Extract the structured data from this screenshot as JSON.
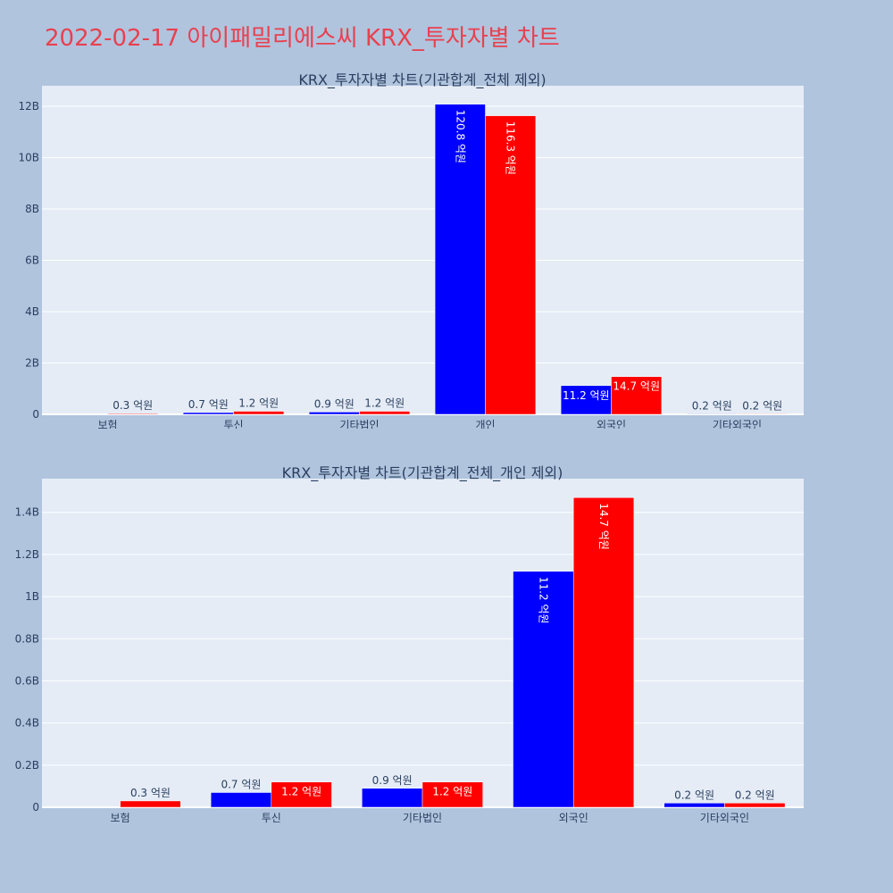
{
  "header": {
    "title": "2022-02-17 아이패밀리에스씨 KRX_투자자별 차트"
  },
  "colors": {
    "page_bg": "#b0c4de",
    "plot_bg": "#e5ecf6",
    "buy": "#0000ff",
    "sell": "#ff0000",
    "title": "#e8414f",
    "text": "#2a3f5f"
  },
  "chart_data": [
    {
      "type": "bar",
      "title": "KRX_투자자별 차트(기관합계_전체 제외)",
      "categories": [
        "보험",
        "투신",
        "기타법인",
        "개인",
        "외국인",
        "기타외국인"
      ],
      "series": [
        {
          "color": "#0000ff",
          "values": [
            0,
            70000000,
            90000000,
            12080000000,
            1120000000,
            20000000
          ],
          "labels": [
            "",
            "0.7 억원",
            "0.9 억원",
            "120.8 억원",
            "11.2 억원",
            "0.2 억원"
          ]
        },
        {
          "color": "#ff0000",
          "values": [
            30000000,
            120000000,
            120000000,
            11630000000,
            1470000000,
            20000000
          ],
          "labels": [
            "0.3 억원",
            "1.2 억원",
            "1.2 억원",
            "116.3 억원",
            "14.7 억원",
            "0.2 억원"
          ]
        }
      ],
      "ylim": [
        0,
        12800000000
      ],
      "yticks": [
        0,
        2000000000,
        4000000000,
        6000000000,
        8000000000,
        10000000000,
        12000000000
      ],
      "ytick_labels": [
        "0",
        "2B",
        "4B",
        "6B",
        "8B",
        "10B",
        "12B"
      ],
      "grid": true
    },
    {
      "type": "bar",
      "title": "KRX_투자자별 차트(기관합계_전체_개인 제외)",
      "categories": [
        "보험",
        "투신",
        "기타법인",
        "외국인",
        "기타외국인"
      ],
      "series": [
        {
          "color": "#0000ff",
          "values": [
            0,
            70000000,
            90000000,
            1120000000,
            20000000
          ],
          "labels": [
            "",
            "0.7 억원",
            "0.9 억원",
            "11.2 억원",
            "0.2 억원"
          ]
        },
        {
          "color": "#ff0000",
          "values": [
            30000000,
            120000000,
            120000000,
            1470000000,
            20000000
          ],
          "labels": [
            "0.3 억원",
            "1.2 억원",
            "1.2 억원",
            "14.7 억원",
            "0.2 억원"
          ]
        }
      ],
      "ylim": [
        0,
        1560000000
      ],
      "yticks": [
        0,
        200000000,
        400000000,
        600000000,
        800000000,
        1000000000,
        1200000000,
        1400000000
      ],
      "ytick_labels": [
        "0",
        "0.2B",
        "0.4B",
        "0.6B",
        "0.8B",
        "1B",
        "1.2B",
        "1.4B"
      ],
      "grid": true
    }
  ]
}
